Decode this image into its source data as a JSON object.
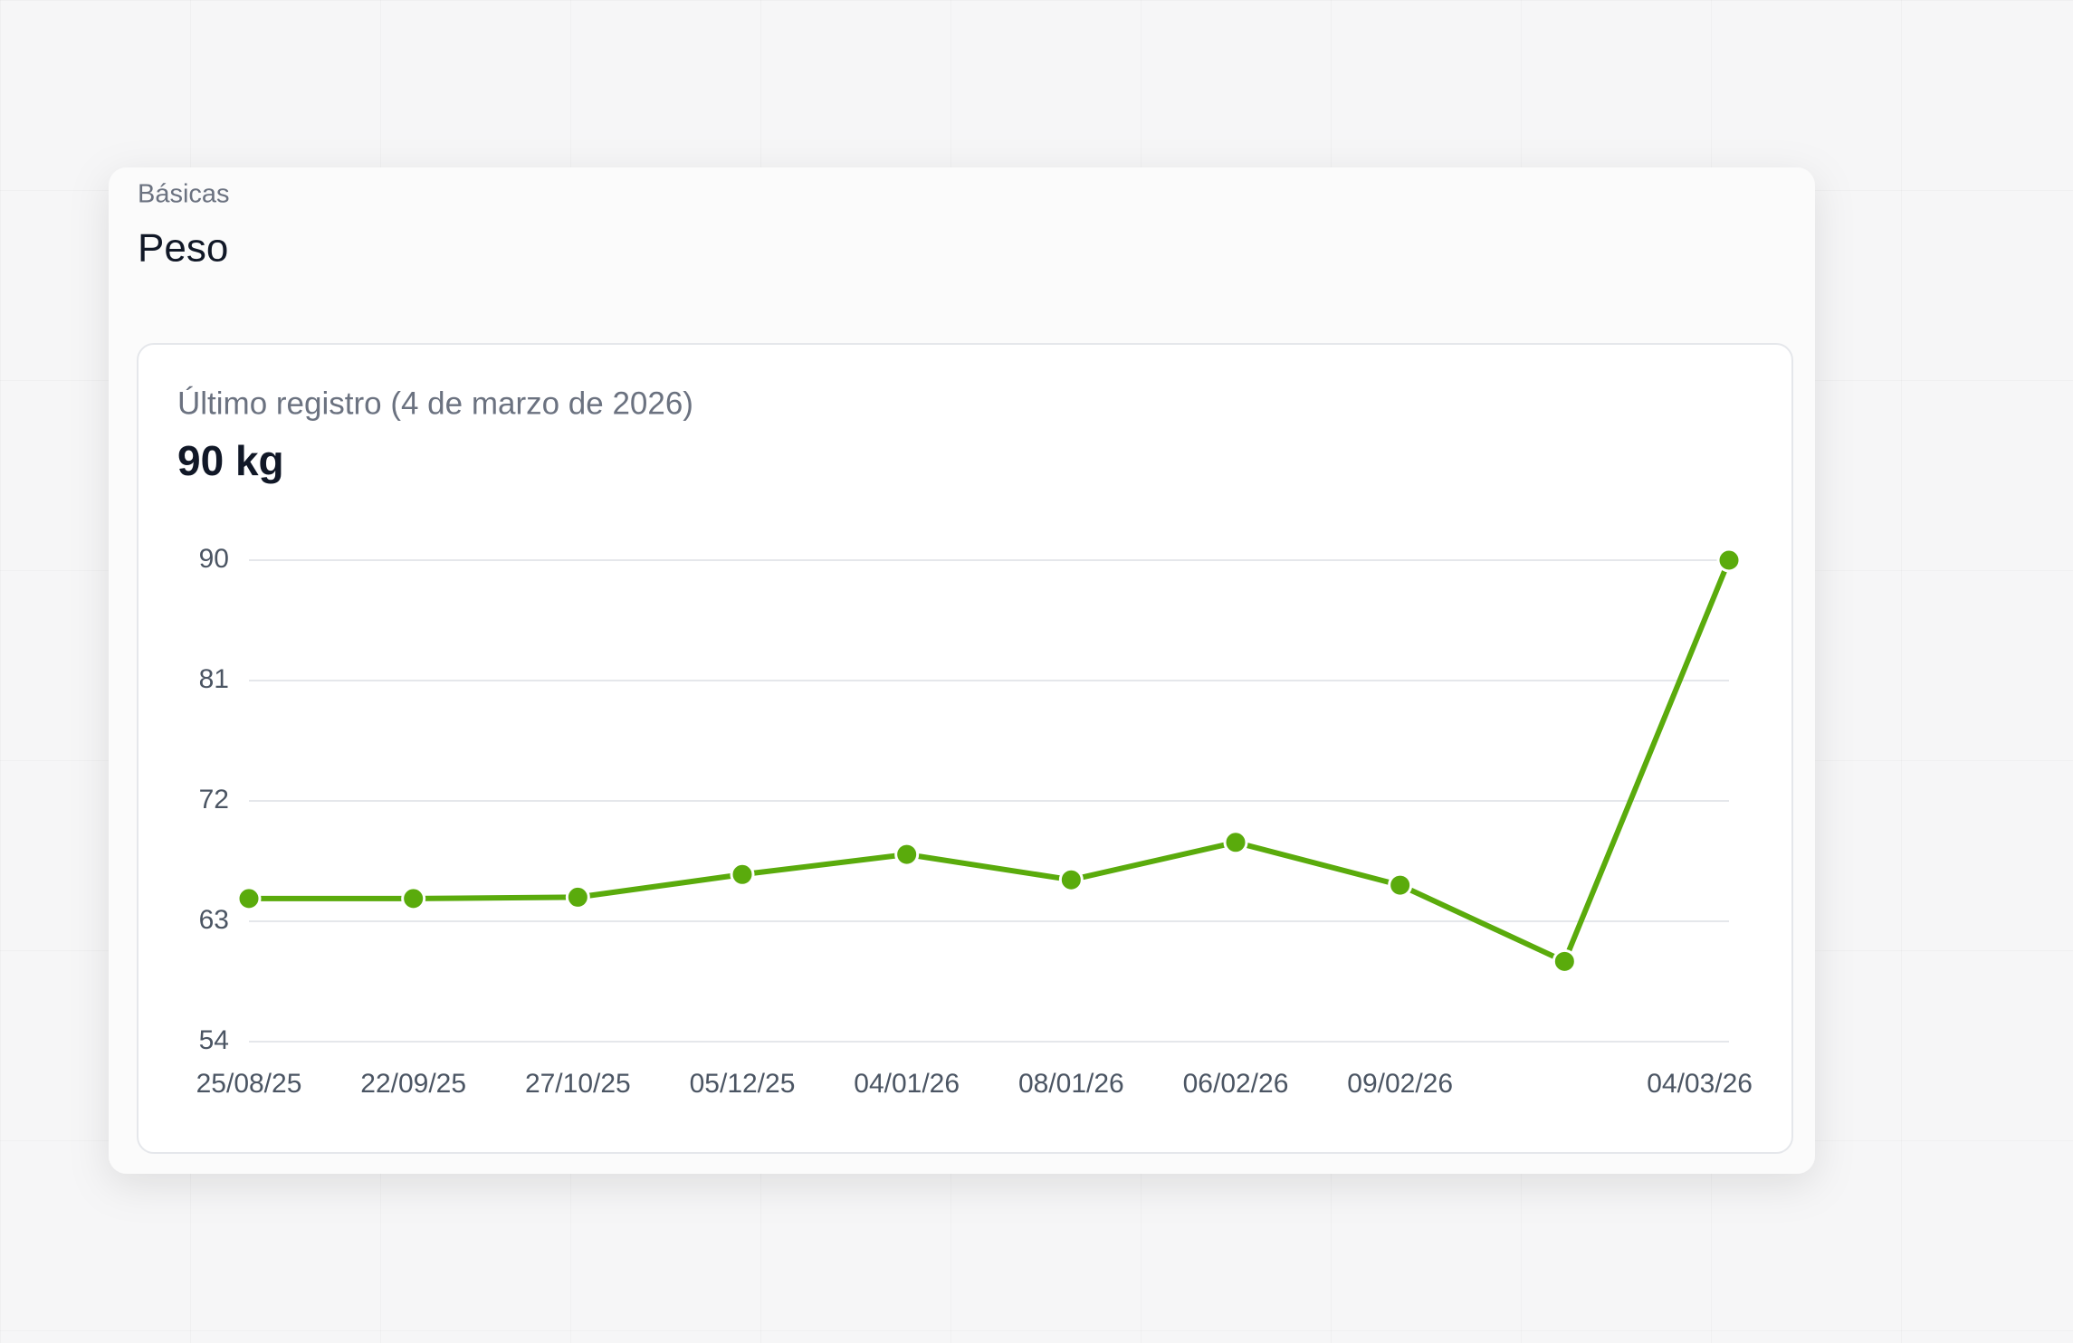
{
  "header": {
    "category": "Básicas",
    "title": "Peso"
  },
  "chart_data": {
    "type": "line",
    "subtitle": "Último registro (4 de marzo de 2026)",
    "annotation": "90 kg",
    "categories": [
      "25/08/25",
      "22/09/25",
      "27/10/25",
      "05/12/25",
      "04/01/26",
      "08/01/26",
      "06/02/26",
      "09/02/26",
      null,
      "04/03/26"
    ],
    "series": [
      {
        "color": "#5aab0c",
        "values": [
          64.7,
          64.7,
          64.8,
          66.5,
          68.0,
          66.1,
          68.9,
          65.7,
          60.0,
          90
        ]
      }
    ],
    "ylim": [
      54,
      90
    ],
    "yticks": [
      54,
      63,
      72,
      81,
      90
    ],
    "grid": true
  }
}
